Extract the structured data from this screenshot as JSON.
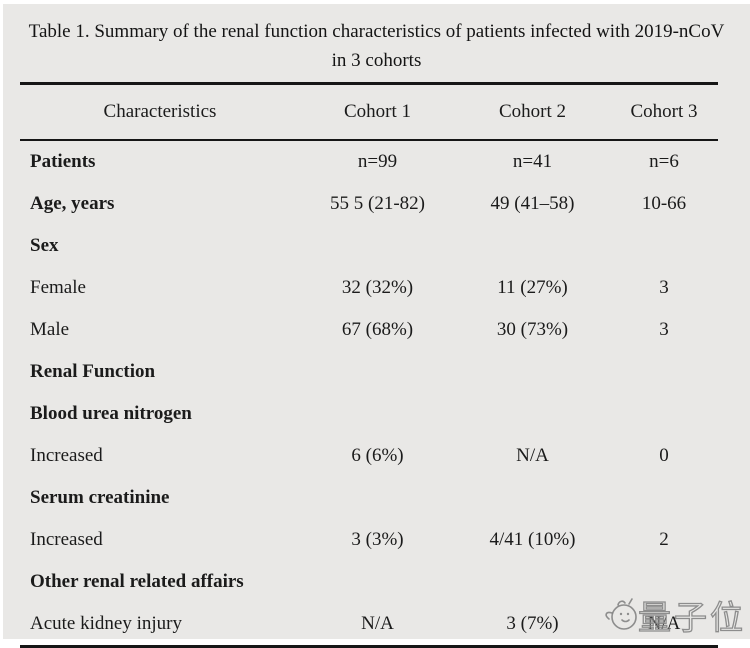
{
  "title": {
    "line1": "Table 1. Summary of the renal function characteristics of patients infected with 2019-nCoV",
    "line2": "in 3 cohorts"
  },
  "table": {
    "headers": [
      "Characteristics",
      "Cohort 1",
      "Cohort 2",
      "Cohort 3"
    ],
    "rows": [
      {
        "label": "Patients",
        "bold": true,
        "values": [
          "n=99",
          "n=41",
          "n=6"
        ]
      },
      {
        "label": "Age, years",
        "bold": true,
        "values": [
          "55 5 (21-82)",
          "49 (41–58)",
          "10-66"
        ]
      },
      {
        "label": "Sex",
        "bold": true,
        "values": [
          "",
          "",
          ""
        ]
      },
      {
        "label": "Female",
        "bold": false,
        "values": [
          "32 (32%)",
          "11 (27%)",
          "3"
        ]
      },
      {
        "label": "Male",
        "bold": false,
        "values": [
          "67 (68%)",
          "30 (73%)",
          "3"
        ]
      },
      {
        "label": "Renal Function",
        "bold": true,
        "values": [
          "",
          "",
          ""
        ]
      },
      {
        "label": "Blood urea nitrogen",
        "bold": true,
        "values": [
          "",
          "",
          ""
        ]
      },
      {
        "label": "Increased",
        "bold": false,
        "values": [
          "6 (6%)",
          "N/A",
          "0"
        ]
      },
      {
        "label": "Serum creatinine",
        "bold": true,
        "values": [
          "",
          "",
          ""
        ]
      },
      {
        "label": "Increased",
        "bold": false,
        "values": [
          "3 (3%)",
          "4/41 (10%)",
          "2"
        ]
      },
      {
        "label": "Other renal related affairs",
        "bold": true,
        "values": [
          "",
          "",
          ""
        ]
      },
      {
        "label": "Acute kidney injury",
        "bold": false,
        "values": [
          "N/A",
          "3 (7%)",
          "N/A"
        ]
      }
    ]
  },
  "watermark": {
    "text": "量子位",
    "icon": "qbitai-mascot-icon"
  },
  "colors": {
    "background": "#e9e8e6",
    "page_border": "#ffffff",
    "text": "#1b1b1b",
    "rule": "#161616",
    "watermark": "#7d7d7d"
  }
}
